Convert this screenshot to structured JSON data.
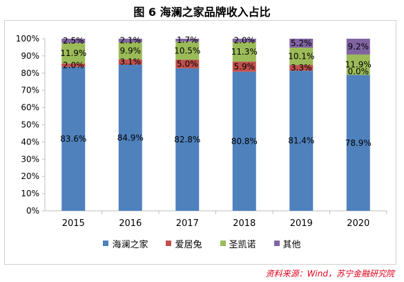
{
  "chart_data": {
    "type": "bar",
    "stacked": true,
    "title": "图 6  海澜之家品牌收入占比",
    "categories": [
      "2015",
      "2016",
      "2017",
      "2018",
      "2019",
      "2020"
    ],
    "ylim": [
      0,
      100
    ],
    "yticks": [
      "0%",
      "10%",
      "20%",
      "30%",
      "40%",
      "50%",
      "60%",
      "70%",
      "80%",
      "90%",
      "100%"
    ],
    "grid": false,
    "legend_position": "bottom",
    "series": [
      {
        "name": "海澜之家",
        "color": "#4f81bd",
        "values": [
          83.6,
          84.9,
          82.8,
          80.8,
          81.4,
          78.9
        ],
        "labels": [
          "83.6%",
          "84.9%",
          "82.8%",
          "80.8%",
          "81.4%",
          "78.9%"
        ]
      },
      {
        "name": "爱居兔",
        "color": "#c0504d",
        "values": [
          2.0,
          3.1,
          5.0,
          5.9,
          3.3,
          0.0
        ],
        "labels": [
          "2.0%",
          "3.1%",
          "5.0%",
          "5.9%",
          "3.3%",
          "0.0%"
        ]
      },
      {
        "name": "圣凯诺",
        "color": "#9bbb59",
        "values": [
          11.9,
          9.9,
          10.5,
          11.3,
          10.1,
          11.9
        ],
        "labels": [
          "11.9%",
          "9.9%",
          "10.5%",
          "11.3%",
          "10.1%",
          "11.9%"
        ]
      },
      {
        "name": "其他",
        "color": "#8064a2",
        "values": [
          2.5,
          2.1,
          1.7,
          2.0,
          5.2,
          9.2
        ],
        "labels": [
          "2.5%",
          "2.1%",
          "1.7%",
          "2.0%",
          "5.2%",
          "9.2%"
        ]
      }
    ]
  },
  "source_note": "资料来源：Wind，苏宁金融研究院"
}
